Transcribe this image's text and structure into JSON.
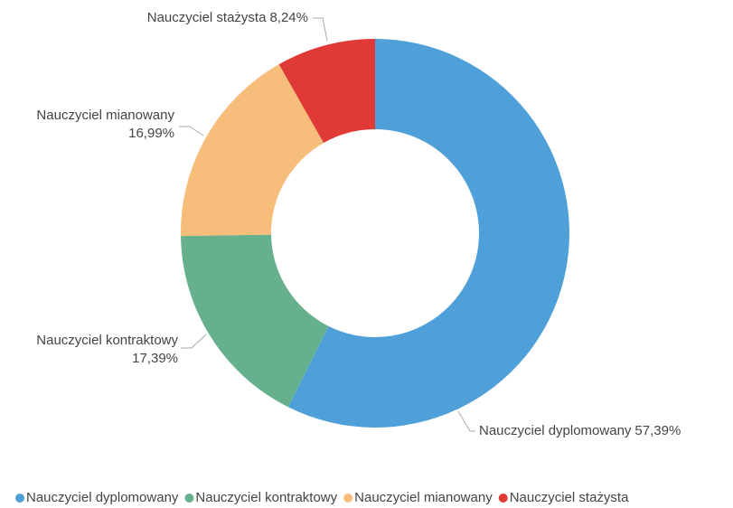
{
  "chart_data": {
    "type": "pie",
    "categories": [
      "Nauczyciel dyplomowany",
      "Nauczyciel kontraktowy",
      "Nauczyciel mianowany",
      "Nauczyciel stażysta"
    ],
    "values": [
      57.39,
      17.39,
      16.99,
      8.24
    ],
    "value_labels": [
      "57,39%",
      "17,39%",
      "16,99%",
      "8,24%"
    ],
    "colors": [
      "#4fa0d8",
      "#66b08e",
      "#f7bd7a",
      "#e03a36"
    ],
    "donut": true
  }
}
